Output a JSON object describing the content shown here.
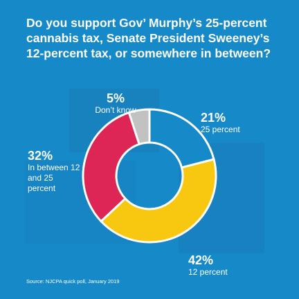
{
  "title": "Do you support Gov’ Murphy’s 25-percent cannabis tax, Senate President Sweeney’s 12-percent tax, or somewhere in between?",
  "source": "Source: NJCPA quick poll, January 2019",
  "colors": {
    "background": "#1689c9",
    "slice_25": "#1689c9",
    "slice_12": "#f7c80f",
    "slice_between": "#dd2656",
    "slice_dontknow": "#c2c2c2",
    "outline": "#ffffff"
  },
  "labels": {
    "dont_know": {
      "pct": "5%",
      "desc": "Don’t know"
    },
    "p25": {
      "pct": "21%",
      "desc": "25 percent"
    },
    "p12": {
      "pct": "42%",
      "desc": "12 percent"
    },
    "between": {
      "pct": "32%",
      "desc": "In between 12 and 25 percent"
    }
  },
  "chart_data": {
    "type": "pie",
    "donut": true,
    "title": "Do you support Gov’ Murphy’s 25-percent cannabis tax, Senate President Sweeney’s 12-percent tax, or somewhere in between?",
    "categories": [
      "25 percent",
      "12 percent",
      "In between 12 and 25 percent",
      "Don’t know"
    ],
    "values": [
      21,
      42,
      32,
      5
    ],
    "unit": "%"
  }
}
